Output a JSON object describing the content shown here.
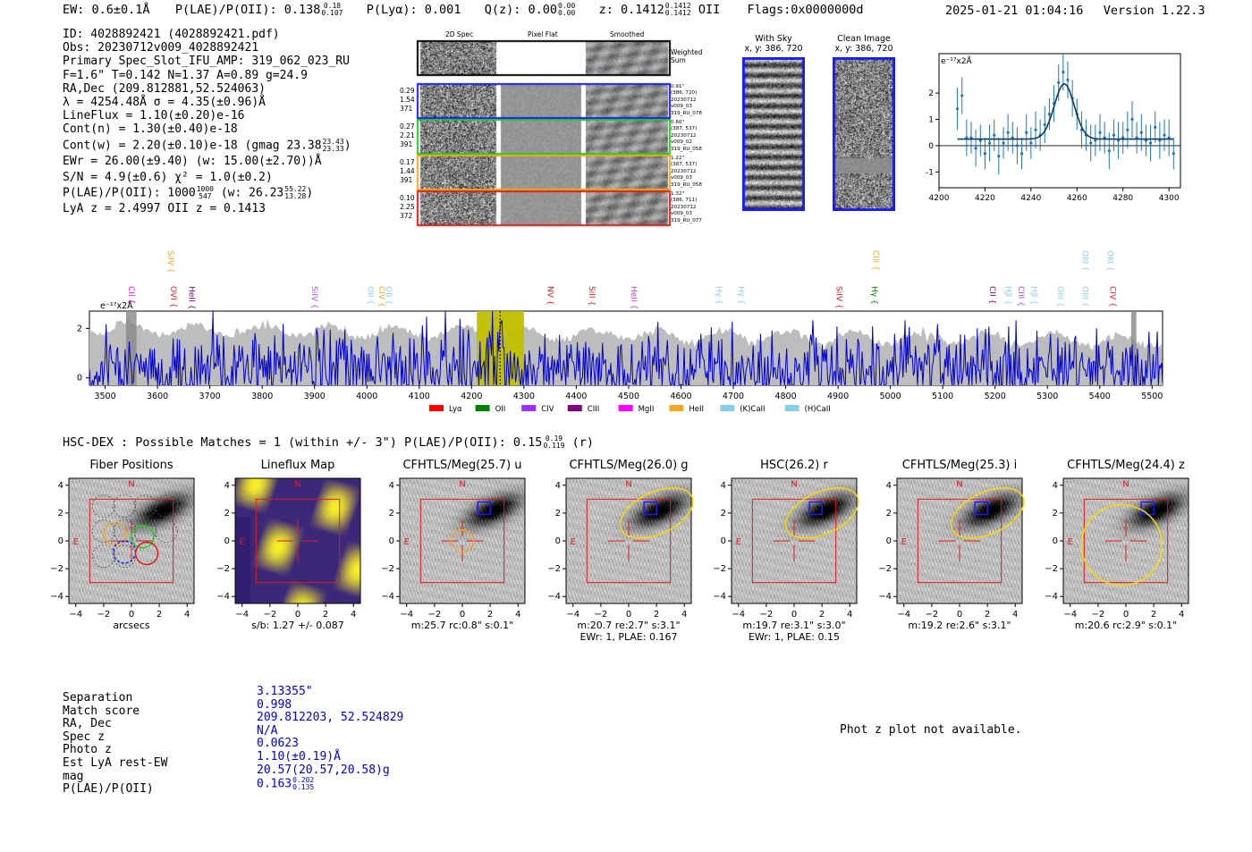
{
  "header": {
    "ew": "EW: 0.6±0.1Å",
    "plae_label": "P(LAE)/P(OII):",
    "plae_val": "0.138",
    "plae_hi": "0.18",
    "plae_lo": "0.107",
    "plya": "P(Lyα): 0.001",
    "qz_label": "Q(z):",
    "qz_val": "0.00",
    "qz_hi": "0.00",
    "qz_lo": "0.00",
    "z_label": "z:",
    "z_val": "0.1412",
    "z_hi": "0.1412",
    "z_lo": "0.1412",
    "z_line": "OII",
    "flags": "Flags:0x0000000d",
    "timestamp": "2025-01-21 01:04:16",
    "version": "Version 1.22.3"
  },
  "info": {
    "lines": [
      "ID: 4028892421 (4028892421.pdf)",
      "Obs: 20230712v009_4028892421",
      "Primary Spec_Slot_IFU_AMP: 319_062_023_RU",
      "F=1.6\"  T=0.142  N=1.37  A=0.89  g=24.9",
      "RA,Dec (209.812881,52.524063)",
      "λ = 4254.48Å  σ = 4.35(±0.96)Å",
      "LineFlux = 1.10(±0.20)e-16",
      "Cont(n) = 1.30(±0.40)e-18"
    ],
    "contw_text": "Cont(w) = 2.20(±0.10)e-18 (gmag 23.38",
    "contw_hi": "23.43",
    "contw_lo": "23.33",
    "contw_close": ")",
    "ewr": "EWr = 26.00(±9.40) (w: 15.00(±2.70))Å",
    "sn": "S/N = 4.9(±0.6)  χ² = 1.0(±0.2)",
    "plae_text": "P(LAE)/P(OII): 1000",
    "plae_hi": "1000",
    "plae_lo": "547",
    "plae_w": "(w: 26.23",
    "plae_w_hi": "55.22",
    "plae_w_lo": "13.28",
    "plae_close": ")",
    "lya": "LyA z = 2.4997  OII z = 0.1413"
  },
  "spec2d": {
    "headers": [
      "2D Spec",
      "Pixel Flat",
      "Smoothed"
    ],
    "weighted_label": "Weighted\nSum",
    "rows": [
      {
        "left": [
          "0.29",
          "1.54",
          "371"
        ],
        "right": [
          "0.91\"",
          "(386, 720)",
          "20230712",
          "v009_03",
          "319_RU_078"
        ],
        "color": "#1a1aff"
      },
      {
        "left": [
          "0.27",
          "2.21",
          "391"
        ],
        "right": [
          "0.60\"",
          "(387, 537)",
          "20230712",
          "v009_02",
          "319_RU_058"
        ],
        "color": "#22cc22"
      },
      {
        "left": [
          "0.17",
          "1.44",
          "391"
        ],
        "right": [
          "1.22\"",
          "(387, 537)",
          "20230712",
          "v009_03",
          "319_RU_058"
        ],
        "color": "#f5a623"
      },
      {
        "left": [
          "0.10",
          "2.25",
          "372"
        ],
        "right": [
          "1.32\"",
          "(386, 711)",
          "20230712",
          "v009_03",
          "319_RU_077"
        ],
        "color": "#e31a1c"
      }
    ]
  },
  "sky": {
    "with_sky": "With Sky",
    "with_sky_xy": "x, y: 386, 720",
    "clean": "Clean Image",
    "clean_xy": "x, y: 386, 720"
  },
  "lineflux_zoom_label": "e⁻¹⁷x2Å",
  "full_spec_label": "e⁻¹⁷x2Å",
  "line_markers": [
    {
      "name": "CII",
      "color": "#ff00ff",
      "w": 3540,
      "high": false
    },
    {
      "name": "SiIV",
      "color": "#f5a623",
      "w": 3615,
      "high": true
    },
    {
      "name": "OVI",
      "color": "#e31a1c",
      "w": 3620,
      "high": false
    },
    {
      "name": "HeII",
      "color": "#800080",
      "w": 3655,
      "high": false
    },
    {
      "name": "SiIV",
      "color": "#b04be0",
      "w": 3890,
      "high": false
    },
    {
      "name": "OII",
      "color": "#87ceeb",
      "w": 3997,
      "high": false
    },
    {
      "name": "CIV",
      "color": "#f5a623",
      "w": 4018,
      "high": false
    },
    {
      "name": "OII",
      "color": "#87ceeb",
      "w": 4032,
      "high": false
    },
    {
      "name": "NV",
      "color": "#e31a1c",
      "w": 4340,
      "high": false
    },
    {
      "name": "SiII",
      "color": "#e31a1c",
      "w": 4420,
      "high": false
    },
    {
      "name": "HeII",
      "color": "#b04be0",
      "w": 4500,
      "high": false
    },
    {
      "name": "Hγ",
      "color": "#87ceeb",
      "w": 4662,
      "high": false
    },
    {
      "name": "Hγ",
      "color": "#87ceeb",
      "w": 4705,
      "high": false
    },
    {
      "name": "SiIV",
      "color": "#e31a1c",
      "w": 4892,
      "high": false
    },
    {
      "name": "CIII",
      "color": "#f5a623",
      "w": 4962,
      "high": true
    },
    {
      "name": "Hγ",
      "color": "#008000",
      "w": 4960,
      "high": false
    },
    {
      "name": "CII",
      "color": "#800080",
      "w": 5185,
      "high": false
    },
    {
      "name": "Hβ",
      "color": "#87ceeb",
      "w": 5215,
      "high": false
    },
    {
      "name": "CIII",
      "color": "#b04be0",
      "w": 5240,
      "high": false
    },
    {
      "name": "Hβ",
      "color": "#87ceeb",
      "w": 5265,
      "high": false
    },
    {
      "name": "OIII",
      "color": "#87ceeb",
      "w": 5315,
      "high": false
    },
    {
      "name": "OIII",
      "color": "#87ceeb",
      "w": 5362,
      "high": true
    },
    {
      "name": "OIII",
      "color": "#87ceeb",
      "w": 5362,
      "high": false
    },
    {
      "name": "OIII",
      "color": "#87ceeb",
      "w": 5410,
      "high": true
    },
    {
      "name": "CIV",
      "color": "#e31a1c",
      "w": 5415,
      "high": false
    }
  ],
  "legend": [
    {
      "label": "Lyα",
      "color": "#ff0000"
    },
    {
      "label": "OII",
      "color": "#008000"
    },
    {
      "label": "CIV",
      "color": "#9b30ff"
    },
    {
      "label": "CIII",
      "color": "#800080"
    },
    {
      "label": "MgII",
      "color": "#ff00ff"
    },
    {
      "label": "HeII",
      "color": "#f5a623"
    },
    {
      "label": "(K)CaII",
      "color": "#87ceeb"
    },
    {
      "label": "(H)CaII",
      "color": "#87ceeb"
    }
  ],
  "hsc": {
    "text": "HSC-DEX : Possible Matches = 1 (within +/- 3\")  P(LAE)/P(OII): 0.15",
    "hi": "0.19",
    "lo": "0.119",
    "tail": "(r)"
  },
  "cutouts": [
    {
      "title": "Fiber Positions",
      "cap1": "arcsecs",
      "cap2": ""
    },
    {
      "title": "Lineflux Map",
      "cap1": "s/b: 1.27 +/- 0.087",
      "cap2": ""
    },
    {
      "title": "CFHTLS/Meg(25.7) u",
      "cap1": "m:25.7 rc:0.8\"  s:0.1\"",
      "cap2": ""
    },
    {
      "title": "CFHTLS/Meg(26.0) g",
      "cap1": "m:20.7  re:2.7\"  s:3.1\"",
      "cap2": "EWr: 1, PLAE: 0.167"
    },
    {
      "title": "HSC(26.2) r",
      "cap1": "m:19.7  re:3.1\"  s:3.0\"",
      "cap2": "EWr: 1, PLAE: 0.15"
    },
    {
      "title": "CFHTLS/Meg(25.3) i",
      "cap1": "m:19.2  re:2.6\"  s:3.1\"",
      "cap2": ""
    },
    {
      "title": "CFHTLS/Meg(24.4) z",
      "cap1": "m:20.6 rc:2.9\"  s:0.1\"",
      "cap2": ""
    }
  ],
  "compass": {
    "n": "N",
    "e": "E"
  },
  "match": {
    "labels": [
      "Separation",
      "Match score",
      "RA, Dec",
      "Spec z",
      "Photo z",
      "Est LyA rest-EW",
      "mag",
      "P(LAE)/P(OII)"
    ],
    "values": [
      "3.13355\"",
      "0.998",
      "209.812203, 52.524829",
      "N/A",
      "0.0623",
      "1.10(±0.19)Å",
      "20.57(20.57,20.58)g",
      "0.163"
    ],
    "plae_hi": "0.202",
    "plae_lo": "0.135"
  },
  "photz_msg": "Phot z plot not available.",
  "chart_data": [
    {
      "type": "scatter",
      "title": "",
      "ylabel": "e⁻¹⁷x2Å",
      "xlim": [
        4200,
        4305
      ],
      "ylim": [
        -1.6,
        3.5
      ],
      "xticks": [
        4200,
        4220,
        4240,
        4260,
        4280,
        4300
      ],
      "yticks": [
        -1,
        0,
        1,
        2
      ],
      "points": [
        {
          "x": 4208,
          "y": 1.4,
          "err": 0.8
        },
        {
          "x": 4210,
          "y": 1.9,
          "err": 0.7
        },
        {
          "x": 4212,
          "y": 0.3,
          "err": 0.7
        },
        {
          "x": 4214,
          "y": 0.3,
          "err": 0.6
        },
        {
          "x": 4216,
          "y": -0.1,
          "err": 0.7
        },
        {
          "x": 4218,
          "y": 0.2,
          "err": 0.6
        },
        {
          "x": 4220,
          "y": -0.3,
          "err": 0.6
        },
        {
          "x": 4222,
          "y": 0.1,
          "err": 0.7
        },
        {
          "x": 4224,
          "y": 0.4,
          "err": 0.6
        },
        {
          "x": 4226,
          "y": -0.4,
          "err": 0.7
        },
        {
          "x": 4228,
          "y": 0.1,
          "err": 0.6
        },
        {
          "x": 4230,
          "y": 0.5,
          "err": 0.7
        },
        {
          "x": 4232,
          "y": 0.3,
          "err": 0.6
        },
        {
          "x": 4234,
          "y": 0.0,
          "err": 0.7
        },
        {
          "x": 4236,
          "y": -0.3,
          "err": 0.6
        },
        {
          "x": 4238,
          "y": 0.5,
          "err": 0.7
        },
        {
          "x": 4240,
          "y": 0.1,
          "err": 0.6
        },
        {
          "x": 4242,
          "y": 0.6,
          "err": 0.7
        },
        {
          "x": 4244,
          "y": 0.4,
          "err": 0.6
        },
        {
          "x": 4246,
          "y": 0.8,
          "err": 0.7
        },
        {
          "x": 4248,
          "y": 1.2,
          "err": 0.6
        },
        {
          "x": 4250,
          "y": 1.6,
          "err": 0.7
        },
        {
          "x": 4252,
          "y": 2.4,
          "err": 0.7
        },
        {
          "x": 4254,
          "y": 2.8,
          "err": 0.7
        },
        {
          "x": 4256,
          "y": 2.5,
          "err": 0.7
        },
        {
          "x": 4258,
          "y": 1.8,
          "err": 0.7
        },
        {
          "x": 4260,
          "y": 1.2,
          "err": 0.6
        },
        {
          "x": 4262,
          "y": 0.6,
          "err": 0.7
        },
        {
          "x": 4264,
          "y": 0.4,
          "err": 0.6
        },
        {
          "x": 4266,
          "y": 0.1,
          "err": 0.7
        },
        {
          "x": 4268,
          "y": 0.2,
          "err": 0.6
        },
        {
          "x": 4270,
          "y": 0.5,
          "err": 0.7
        },
        {
          "x": 4272,
          "y": 0.3,
          "err": 0.6
        },
        {
          "x": 4274,
          "y": -0.2,
          "err": 0.7
        },
        {
          "x": 4276,
          "y": 0.4,
          "err": 0.6
        },
        {
          "x": 4278,
          "y": 0.2,
          "err": 0.7
        },
        {
          "x": 4280,
          "y": 0.3,
          "err": 0.6
        },
        {
          "x": 4282,
          "y": 0.6,
          "err": 0.7
        },
        {
          "x": 4284,
          "y": 1.0,
          "err": 0.7
        },
        {
          "x": 4286,
          "y": 0.3,
          "err": 0.6
        },
        {
          "x": 4288,
          "y": 0.5,
          "err": 0.7
        },
        {
          "x": 4290,
          "y": 0.2,
          "err": 0.6
        },
        {
          "x": 4292,
          "y": 0.1,
          "err": 0.7
        },
        {
          "x": 4294,
          "y": 0.7,
          "err": 0.6
        },
        {
          "x": 4296,
          "y": 0.2,
          "err": 0.7
        },
        {
          "x": 4298,
          "y": 0.4,
          "err": 0.6
        },
        {
          "x": 4300,
          "y": 0.3,
          "err": 0.7
        },
        {
          "x": 4302,
          "y": -0.3,
          "err": 0.6
        }
      ],
      "fit": {
        "center": 4254.48,
        "sigma": 4.35,
        "amp": 2.1,
        "baseline": 0.25
      }
    },
    {
      "type": "line",
      "title": "",
      "ylabel": "e⁻¹⁷x2Å",
      "xlim": [
        3470,
        5520
      ],
      "ylim": [
        -0.3,
        2.7
      ],
      "xticks": [
        3500,
        3600,
        3700,
        3800,
        3900,
        4000,
        4100,
        4200,
        4300,
        4400,
        4500,
        4600,
        4700,
        4800,
        4900,
        5000,
        5100,
        5200,
        5300,
        5400,
        5500
      ],
      "yticks": [
        0,
        2
      ],
      "highlight": [
        4210,
        4300
      ],
      "line_at": 4254.48
    }
  ]
}
